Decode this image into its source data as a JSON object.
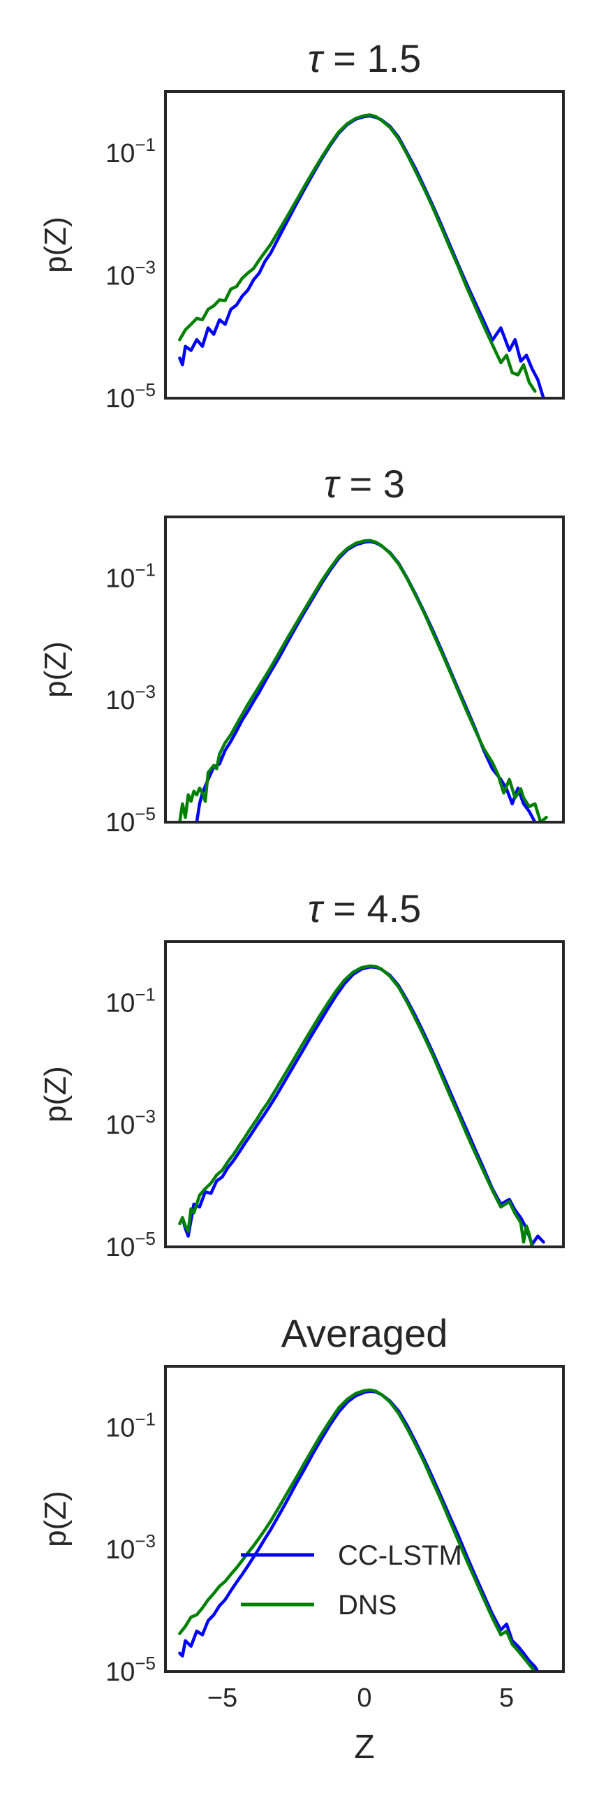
{
  "chart_data": [
    {
      "type": "line",
      "title": "τ = 1.5",
      "title_parts": {
        "italic": "τ",
        "rest": " = 1.5"
      },
      "ylabel": "p(Z)",
      "xlabel": "",
      "xlim": [
        -7,
        7
      ],
      "ylim": [
        1e-05,
        1.0
      ],
      "yscale": "log",
      "yticks": [
        {
          "base": "10",
          "exp": "−1",
          "value": 0.1
        },
        {
          "base": "10",
          "exp": "−3",
          "value": 0.001
        },
        {
          "base": "10",
          "exp": "−5",
          "value": 1e-05
        }
      ],
      "xticks": [],
      "grid": false,
      "series": [
        {
          "name": "CC-LSTM",
          "color": "#0000ff",
          "x": [
            -6.5,
            -6.4,
            -6.3,
            -6.1,
            -5.9,
            -5.7,
            -5.5,
            -5.3,
            -5.1,
            -4.9,
            -4.7,
            -4.5,
            -4.3,
            -4.1,
            -3.9,
            -3.7,
            -3.5,
            -3.3,
            -3.0,
            -2.7,
            -2.4,
            -2.1,
            -1.8,
            -1.5,
            -1.2,
            -0.9,
            -0.6,
            -0.3,
            0.0,
            0.2,
            0.4,
            0.6,
            0.9,
            1.2,
            1.5,
            1.8,
            2.1,
            2.4,
            2.7,
            3.0,
            3.3,
            3.6,
            3.9,
            4.2,
            4.5,
            4.8,
            5.1,
            5.3,
            5.5,
            5.7,
            5.9,
            6.1,
            6.3
          ],
          "y": [
            4.5e-05,
            3.5e-05,
            7e-05,
            6e-05,
            9e-05,
            7e-05,
            0.00014,
            0.00011,
            0.00019,
            0.00016,
            0.00028,
            0.00033,
            0.00046,
            0.00058,
            0.00085,
            0.0011,
            0.0017,
            0.0023,
            0.0043,
            0.0079,
            0.0145,
            0.026,
            0.046,
            0.08,
            0.133,
            0.21,
            0.29,
            0.355,
            0.39,
            0.4,
            0.38,
            0.345,
            0.27,
            0.18,
            0.1,
            0.055,
            0.028,
            0.014,
            0.0068,
            0.0032,
            0.0015,
            0.00072,
            0.00036,
            0.00018,
            8.8e-05,
            0.00014,
            6e-05,
            9e-05,
            4e-05,
            5e-05,
            3e-05,
            2e-05,
            1e-05
          ]
        },
        {
          "name": "DNS",
          "color": "#008000",
          "x": [
            -6.5,
            -6.3,
            -6.1,
            -5.9,
            -5.7,
            -5.5,
            -5.3,
            -5.1,
            -4.9,
            -4.7,
            -4.5,
            -4.3,
            -4.1,
            -3.9,
            -3.7,
            -3.5,
            -3.3,
            -3.0,
            -2.7,
            -2.4,
            -2.1,
            -1.8,
            -1.5,
            -1.2,
            -0.9,
            -0.6,
            -0.3,
            0.0,
            0.2,
            0.4,
            0.6,
            0.9,
            1.2,
            1.5,
            1.8,
            2.1,
            2.4,
            2.7,
            3.0,
            3.3,
            3.6,
            3.9,
            4.2,
            4.5,
            4.8,
            5.0,
            5.2,
            5.4,
            5.6,
            5.8,
            6.0
          ],
          "y": [
            9e-05,
            0.00013,
            0.00016,
            0.0002,
            0.00019,
            0.00028,
            0.00032,
            0.0004,
            0.00039,
            0.0006,
            0.00066,
            0.0009,
            0.0011,
            0.0013,
            0.0018,
            0.0024,
            0.0032,
            0.0055,
            0.0095,
            0.0165,
            0.029,
            0.05,
            0.085,
            0.14,
            0.22,
            0.3,
            0.365,
            0.405,
            0.415,
            0.39,
            0.34,
            0.26,
            0.17,
            0.095,
            0.05,
            0.026,
            0.013,
            0.0062,
            0.0029,
            0.0014,
            0.00064,
            0.00031,
            0.00015,
            7.5e-05,
            3.8e-05,
            5e-05,
            2.6e-05,
            2.4e-05,
            3.5e-05,
            1.8e-05,
            1.3e-05
          ]
        }
      ]
    },
    {
      "type": "line",
      "title": "τ = 3",
      "title_parts": {
        "italic": "τ",
        "rest": " = 3"
      },
      "ylabel": "p(Z)",
      "xlabel": "",
      "xlim": [
        -7,
        7
      ],
      "ylim": [
        1e-05,
        1.0
      ],
      "yscale": "log",
      "yticks": [
        {
          "base": "10",
          "exp": "−1",
          "value": 0.1
        },
        {
          "base": "10",
          "exp": "−3",
          "value": 0.001
        },
        {
          "base": "10",
          "exp": "−5",
          "value": 1e-05
        }
      ],
      "xticks": [],
      "grid": false,
      "series": [
        {
          "name": "CC-LSTM",
          "color": "#0000ff",
          "x": [
            -5.9,
            -5.8,
            -5.7,
            -5.5,
            -5.3,
            -5.1,
            -4.9,
            -4.7,
            -4.5,
            -4.3,
            -4.1,
            -3.9,
            -3.7,
            -3.5,
            -3.3,
            -3.0,
            -2.7,
            -2.4,
            -2.1,
            -1.8,
            -1.5,
            -1.2,
            -0.9,
            -0.6,
            -0.3,
            0.0,
            0.2,
            0.4,
            0.6,
            0.9,
            1.2,
            1.5,
            1.8,
            2.1,
            2.4,
            2.7,
            3.0,
            3.3,
            3.6,
            3.9,
            4.2,
            4.5,
            4.8,
            5.0,
            5.2,
            5.4,
            5.6,
            5.8,
            6.0
          ],
          "y": [
            1e-05,
            2e-05,
            3e-05,
            5e-05,
            8e-05,
            9e-05,
            0.00015,
            0.00021,
            0.00031,
            0.00047,
            0.00066,
            0.00095,
            0.00135,
            0.002,
            0.0029,
            0.005,
            0.009,
            0.016,
            0.028,
            0.048,
            0.082,
            0.135,
            0.21,
            0.29,
            0.35,
            0.385,
            0.395,
            0.375,
            0.335,
            0.26,
            0.175,
            0.1,
            0.054,
            0.028,
            0.014,
            0.0068,
            0.0032,
            0.0015,
            0.00072,
            0.00034,
            0.00015,
            7.5e-05,
            5e-05,
            3.5e-05,
            2e-05,
            3.6e-05,
            2e-05,
            1.5e-05,
            1e-05
          ]
        },
        {
          "name": "DNS",
          "color": "#008000",
          "x": [
            -6.5,
            -6.4,
            -6.3,
            -6.2,
            -6.1,
            -6.0,
            -5.9,
            -5.8,
            -5.7,
            -5.6,
            -5.5,
            -5.3,
            -5.2,
            -5.1,
            -4.9,
            -4.7,
            -4.5,
            -4.3,
            -4.1,
            -3.9,
            -3.7,
            -3.5,
            -3.3,
            -3.0,
            -2.7,
            -2.4,
            -2.1,
            -1.8,
            -1.5,
            -1.2,
            -0.9,
            -0.6,
            -0.3,
            0.0,
            0.2,
            0.4,
            0.6,
            0.9,
            1.2,
            1.5,
            1.8,
            2.1,
            2.4,
            2.7,
            3.0,
            3.3,
            3.6,
            3.9,
            4.2,
            4.5,
            4.7,
            4.9,
            5.1,
            5.3,
            5.5,
            5.6,
            5.8,
            6.0,
            6.2,
            6.4
          ],
          "y": [
            1e-05,
            2e-05,
            1.2e-05,
            2.8e-05,
            2.2e-05,
            3.2e-05,
            2.8e-05,
            3.6e-05,
            3e-05,
            2.2e-05,
            6.5e-05,
            8.5e-05,
            7.5e-05,
            0.00013,
            0.0002,
            0.00027,
            0.0004,
            0.00058,
            0.00085,
            0.0012,
            0.0017,
            0.0024,
            0.0034,
            0.006,
            0.0105,
            0.018,
            0.031,
            0.053,
            0.09,
            0.145,
            0.225,
            0.305,
            0.37,
            0.405,
            0.41,
            0.385,
            0.34,
            0.255,
            0.17,
            0.098,
            0.052,
            0.027,
            0.013,
            0.0063,
            0.003,
            0.0014,
            0.00066,
            0.00032,
            0.00016,
            9.5e-05,
            6e-05,
            3e-05,
            5e-05,
            2.5e-05,
            3.5e-05,
            2.5e-05,
            1.8e-05,
            2e-05,
            1e-05,
            1.2e-05
          ]
        }
      ]
    },
    {
      "type": "line",
      "title": "τ = 4.5",
      "title_parts": {
        "italic": "τ",
        "rest": " = 4.5"
      },
      "ylabel": "p(Z)",
      "xlabel": "",
      "xlim": [
        -7,
        7
      ],
      "ylim": [
        1e-05,
        1.0
      ],
      "yscale": "log",
      "yticks": [
        {
          "base": "10",
          "exp": "−1",
          "value": 0.1
        },
        {
          "base": "10",
          "exp": "−3",
          "value": 0.001
        },
        {
          "base": "10",
          "exp": "−5",
          "value": 1e-05
        }
      ],
      "xticks": [],
      "grid": false,
      "series": [
        {
          "name": "CC-LSTM",
          "color": "#0000ff",
          "x": [
            -6.4,
            -6.3,
            -6.2,
            -6.0,
            -5.8,
            -5.6,
            -5.4,
            -5.2,
            -5.0,
            -4.8,
            -4.6,
            -4.4,
            -4.2,
            -4.0,
            -3.8,
            -3.6,
            -3.4,
            -3.1,
            -2.8,
            -2.5,
            -2.2,
            -1.9,
            -1.6,
            -1.3,
            -1.0,
            -0.7,
            -0.4,
            -0.1,
            0.2,
            0.4,
            0.6,
            0.9,
            1.2,
            1.5,
            1.8,
            2.1,
            2.4,
            2.7,
            3.0,
            3.3,
            3.6,
            3.9,
            4.2,
            4.5,
            4.8,
            5.1,
            5.3,
            5.5,
            5.7,
            5.9,
            6.1,
            6.3
          ],
          "y": [
            3e-05,
            2e-05,
            1.5e-05,
            5e-05,
            4.5e-05,
            8e-05,
            7.5e-05,
            0.00012,
            0.00014,
            0.0002,
            0.00026,
            0.00036,
            0.0005,
            0.00068,
            0.00095,
            0.0013,
            0.0018,
            0.003,
            0.0052,
            0.009,
            0.0155,
            0.027,
            0.046,
            0.078,
            0.13,
            0.205,
            0.29,
            0.355,
            0.385,
            0.38,
            0.35,
            0.28,
            0.19,
            0.11,
            0.06,
            0.031,
            0.0155,
            0.0075,
            0.0036,
            0.0017,
            0.00082,
            0.00039,
            0.00019,
            9e-05,
            5e-05,
            6e-05,
            4e-05,
            3e-05,
            2e-05,
            1.1e-05,
            1.5e-05,
            1.2e-05
          ]
        },
        {
          "name": "DNS",
          "color": "#008000",
          "x": [
            -6.5,
            -6.4,
            -6.3,
            -6.2,
            -6.1,
            -6.0,
            -5.8,
            -5.6,
            -5.4,
            -5.2,
            -5.0,
            -4.8,
            -4.6,
            -4.4,
            -4.2,
            -4.0,
            -3.8,
            -3.6,
            -3.4,
            -3.1,
            -2.8,
            -2.5,
            -2.2,
            -1.9,
            -1.6,
            -1.3,
            -1.0,
            -0.7,
            -0.4,
            -0.1,
            0.2,
            0.4,
            0.6,
            0.9,
            1.2,
            1.5,
            1.8,
            2.1,
            2.4,
            2.7,
            3.0,
            3.3,
            3.6,
            3.9,
            4.2,
            4.5,
            4.8,
            5.1,
            5.3,
            5.5,
            5.6,
            5.7,
            5.8,
            5.9
          ],
          "y": [
            2.4e-05,
            3e-05,
            2.2e-05,
            1.8e-05,
            4.2e-05,
            3.6e-05,
            7e-05,
            9e-05,
            0.00011,
            0.00015,
            0.00018,
            0.00025,
            0.00033,
            0.00046,
            0.00063,
            0.00088,
            0.0012,
            0.0017,
            0.0023,
            0.0039,
            0.0067,
            0.0115,
            0.02,
            0.034,
            0.058,
            0.096,
            0.155,
            0.235,
            0.315,
            0.375,
            0.4,
            0.39,
            0.355,
            0.27,
            0.18,
            0.102,
            0.054,
            0.028,
            0.014,
            0.0066,
            0.0031,
            0.0015,
            0.0007,
            0.00034,
            0.00017,
            8.5e-05,
            4.5e-05,
            5.5e-05,
            3.5e-05,
            2.5e-05,
            1.2e-05,
            2.2e-05,
            1.6e-05,
            1e-05
          ]
        }
      ]
    },
    {
      "type": "line",
      "title": "Averaged",
      "title_parts": {
        "italic": "",
        "rest": "Averaged"
      },
      "ylabel": "p(Z)",
      "xlabel": "Z",
      "xlim": [
        -7,
        7
      ],
      "ylim": [
        1e-05,
        1.0
      ],
      "yscale": "log",
      "yticks": [
        {
          "base": "10",
          "exp": "−1",
          "value": 0.1
        },
        {
          "base": "10",
          "exp": "−3",
          "value": 0.001
        },
        {
          "base": "10",
          "exp": "−5",
          "value": 1e-05
        }
      ],
      "xticks": [
        {
          "label": "−5",
          "value": -5
        },
        {
          "label": "0",
          "value": 0
        },
        {
          "label": "5",
          "value": 5
        }
      ],
      "grid": false,
      "legend": {
        "placement": "lower-center",
        "entries": [
          "CC-LSTM",
          "DNS"
        ]
      },
      "series": [
        {
          "name": "CC-LSTM",
          "color": "#0000ff",
          "x": [
            -6.5,
            -6.4,
            -6.3,
            -6.1,
            -5.9,
            -5.7,
            -5.5,
            -5.3,
            -5.1,
            -4.9,
            -4.7,
            -4.5,
            -4.3,
            -4.1,
            -3.9,
            -3.7,
            -3.5,
            -3.3,
            -3.0,
            -2.7,
            -2.4,
            -2.1,
            -1.8,
            -1.5,
            -1.2,
            -0.9,
            -0.6,
            -0.3,
            0.0,
            0.2,
            0.4,
            0.6,
            0.9,
            1.2,
            1.5,
            1.8,
            2.1,
            2.4,
            2.7,
            3.0,
            3.3,
            3.6,
            3.9,
            4.2,
            4.5,
            4.8,
            5.0,
            5.2,
            5.4,
            5.6,
            5.8,
            6.0,
            6.1
          ],
          "y": [
            2e-05,
            1.8e-05,
            3.2e-05,
            2.6e-05,
            4.6e-05,
            4e-05,
            6.8e-05,
            8.5e-05,
            0.00012,
            0.00015,
            0.00021,
            0.00029,
            0.00039,
            0.00054,
            0.00075,
            0.00105,
            0.0015,
            0.0021,
            0.0037,
            0.0066,
            0.012,
            0.021,
            0.038,
            0.066,
            0.112,
            0.18,
            0.26,
            0.33,
            0.375,
            0.39,
            0.38,
            0.345,
            0.27,
            0.185,
            0.108,
            0.058,
            0.03,
            0.015,
            0.0073,
            0.0035,
            0.0017,
            0.00078,
            0.00037,
            0.00018,
            8.8e-05,
            4.8e-05,
            6e-05,
            3.2e-05,
            2.6e-05,
            2e-05,
            1.5e-05,
            1.2e-05,
            1e-05
          ]
        },
        {
          "name": "DNS",
          "color": "#008000",
          "x": [
            -6.5,
            -6.3,
            -6.1,
            -5.9,
            -5.7,
            -5.5,
            -5.3,
            -5.1,
            -4.9,
            -4.7,
            -4.5,
            -4.3,
            -4.1,
            -3.9,
            -3.7,
            -3.5,
            -3.3,
            -3.0,
            -2.7,
            -2.4,
            -2.1,
            -1.8,
            -1.5,
            -1.2,
            -0.9,
            -0.6,
            -0.3,
            0.0,
            0.2,
            0.4,
            0.6,
            0.9,
            1.2,
            1.5,
            1.8,
            2.1,
            2.4,
            2.7,
            3.0,
            3.3,
            3.6,
            3.9,
            4.2,
            4.5,
            4.8,
            5.0,
            5.2,
            5.4,
            5.6,
            5.8,
            6.0
          ],
          "y": [
            4.2e-05,
            5.5e-05,
            7.8e-05,
            8.5e-05,
            0.00011,
            0.00015,
            0.00019,
            0.00025,
            0.0003,
            0.00039,
            0.0005,
            0.00066,
            0.00088,
            0.00115,
            0.00155,
            0.0021,
            0.0029,
            0.005,
            0.0087,
            0.015,
            0.0265,
            0.046,
            0.079,
            0.13,
            0.21,
            0.29,
            0.36,
            0.4,
            0.41,
            0.39,
            0.345,
            0.26,
            0.17,
            0.097,
            0.052,
            0.027,
            0.013,
            0.0064,
            0.003,
            0.0014,
            0.00066,
            0.00032,
            0.000155,
            7.6e-05,
            4e-05,
            4.6e-05,
            2.8e-05,
            2.2e-05,
            1.7e-05,
            1.3e-05,
            1e-05
          ]
        }
      ]
    }
  ]
}
